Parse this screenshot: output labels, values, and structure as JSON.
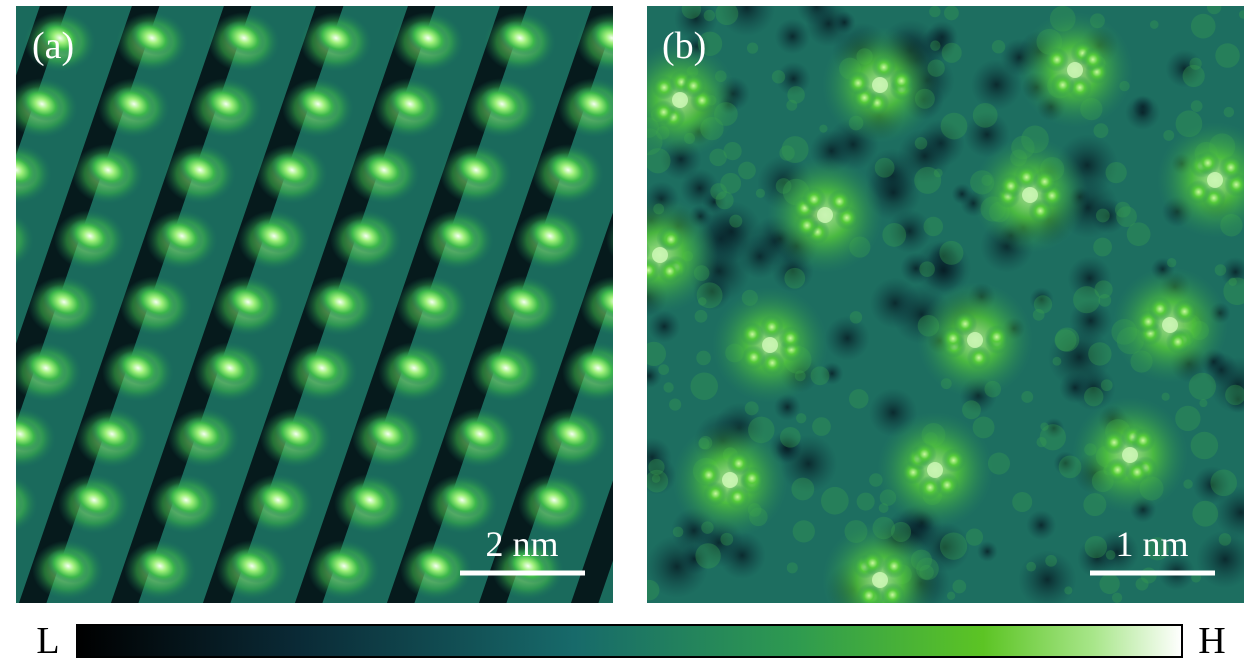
{
  "panels": [
    {
      "label": "(a)",
      "scale_bar": "2 nm"
    },
    {
      "label": "(b)",
      "scale_bar": "1 nm"
    }
  ],
  "colorbar": {
    "low": "L",
    "high": "H"
  }
}
